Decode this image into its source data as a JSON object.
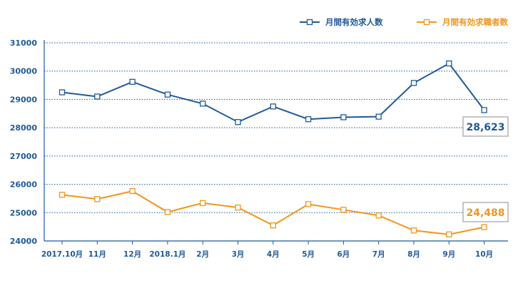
{
  "chart_data": {
    "type": "line",
    "categories": [
      "2017.10月",
      "11月",
      "12月",
      "2018.1月",
      "2月",
      "3月",
      "4月",
      "5月",
      "6月",
      "7月",
      "8月",
      "9月",
      "10月"
    ],
    "series": [
      {
        "name": "月間有効求人数",
        "color": "#1f5a96",
        "values": [
          29250,
          29100,
          29620,
          29170,
          28850,
          28200,
          28750,
          28300,
          28370,
          28390,
          29580,
          30270,
          28623
        ],
        "end_label": "28,623"
      },
      {
        "name": "月間有効求職者数",
        "color": "#f0961e",
        "values": [
          25630,
          25480,
          25760,
          25020,
          25340,
          25180,
          24550,
          25300,
          25100,
          24900,
          24370,
          24230,
          24488
        ],
        "end_label": "24,488"
      }
    ],
    "y_ticks": [
      "31000",
      "30000",
      "29000",
      "28000",
      "27000",
      "26000",
      "25000",
      "24000"
    ],
    "ylim": [
      24000,
      31000
    ],
    "grid": true,
    "legend_position": "top-right"
  }
}
